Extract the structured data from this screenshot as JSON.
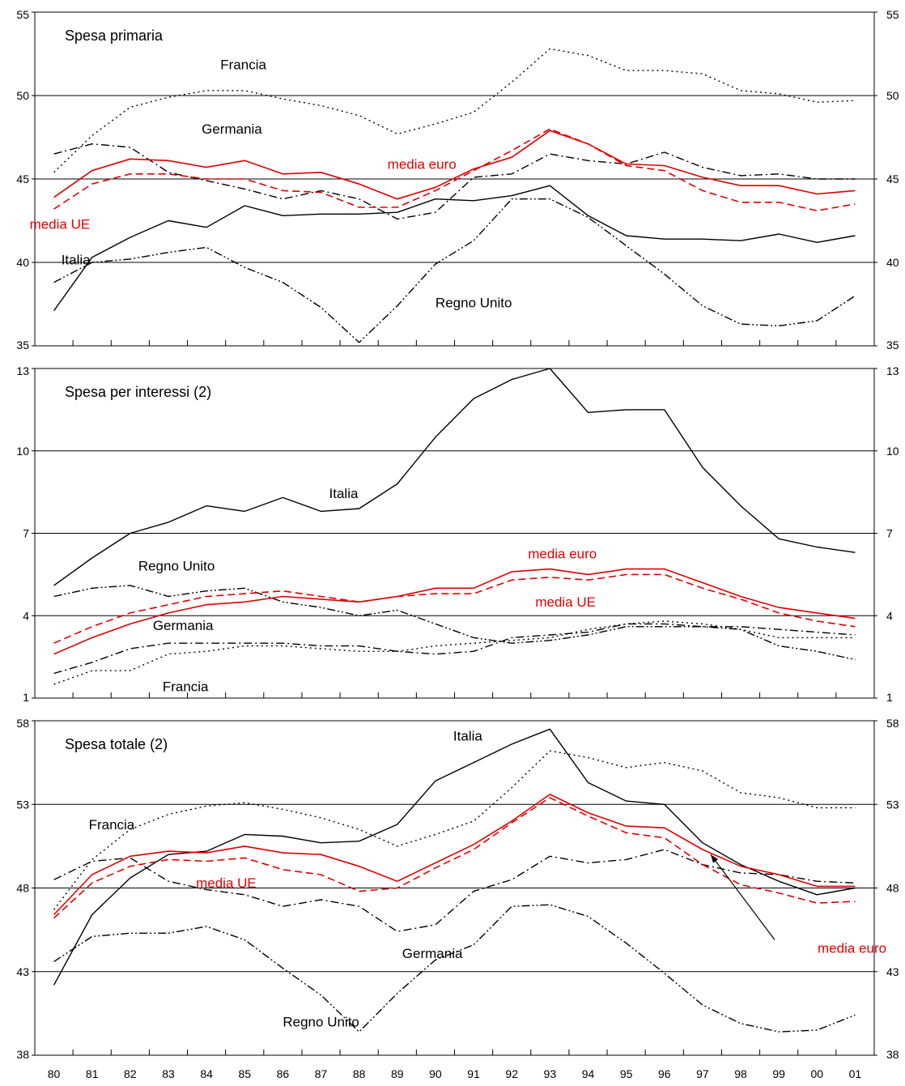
{
  "colors": {
    "series_black": "#000000",
    "series_red": "#e00000",
    "grid": "#000000"
  },
  "chart_data": [
    {
      "type": "line",
      "title": "Spesa primaria",
      "x": [
        "80",
        "81",
        "82",
        "83",
        "84",
        "85",
        "86",
        "87",
        "88",
        "89",
        "90",
        "91",
        "92",
        "93",
        "94",
        "95",
        "96",
        "97",
        "98",
        "99",
        "00",
        "01"
      ],
      "ylim": [
        35,
        55
      ],
      "yticks": [
        35,
        40,
        45,
        50,
        55
      ],
      "grid": [
        40,
        45,
        50
      ],
      "series": [
        {
          "name": "Francia",
          "style": "dotted",
          "color": "black",
          "values": [
            45.4,
            47.6,
            49.3,
            49.9,
            50.3,
            50.3,
            49.8,
            49.4,
            48.8,
            47.7,
            48.3,
            49.0,
            50.8,
            52.8,
            52.4,
            51.5,
            51.5,
            51.3,
            50.3,
            50.1,
            49.6,
            49.7
          ]
        },
        {
          "name": "Germania",
          "style": "dashdot",
          "color": "black",
          "values": [
            46.5,
            47.1,
            46.9,
            45.4,
            44.9,
            44.4,
            43.8,
            44.3,
            43.8,
            42.6,
            43.0,
            45.1,
            45.3,
            46.5,
            46.1,
            45.9,
            46.6,
            45.7,
            45.2,
            45.3,
            45.0,
            45.0
          ]
        },
        {
          "name": "Italia",
          "style": "solid",
          "color": "black",
          "values": [
            37.1,
            40.3,
            41.5,
            42.5,
            42.1,
            43.4,
            42.8,
            42.9,
            42.9,
            43.0,
            43.8,
            43.7,
            44.0,
            44.6,
            42.8,
            41.6,
            41.4,
            41.4,
            41.3,
            41.7,
            41.2,
            41.6
          ]
        },
        {
          "name": "Regno Unito",
          "style": "dashdotdot",
          "color": "black",
          "values": [
            38.8,
            40.0,
            40.2,
            40.6,
            40.9,
            39.7,
            38.8,
            37.3,
            35.2,
            37.4,
            39.9,
            41.3,
            43.8,
            43.8,
            42.7,
            41.0,
            39.3,
            37.4,
            36.3,
            36.2,
            36.5,
            38.0
          ]
        },
        {
          "name": "media euro",
          "style": "solid",
          "color": "red",
          "values": [
            43.9,
            45.5,
            46.2,
            46.1,
            45.7,
            46.1,
            45.3,
            45.4,
            44.7,
            43.8,
            44.5,
            45.6,
            46.3,
            47.9,
            47.1,
            45.9,
            45.8,
            45.1,
            44.6,
            44.6,
            44.1,
            44.3
          ]
        },
        {
          "name": "media UE",
          "style": "dashed",
          "color": "red",
          "values": [
            43.2,
            44.7,
            45.3,
            45.3,
            45.0,
            45.0,
            44.3,
            44.2,
            43.3,
            43.3,
            44.3,
            45.5,
            46.7,
            48.0,
            47.1,
            45.8,
            45.5,
            44.3,
            43.6,
            43.6,
            43.1,
            43.5
          ]
        }
      ],
      "labels": {
        "Francia": "Francia",
        "Germania": "Germania",
        "Italia": "Italia",
        "Regno Unito": "Regno Unito",
        "media euro": "media euro",
        "media UE": "media UE"
      }
    },
    {
      "type": "line",
      "title": "Spesa per interessi (2)",
      "x": [
        "80",
        "81",
        "82",
        "83",
        "84",
        "85",
        "86",
        "87",
        "88",
        "89",
        "90",
        "91",
        "92",
        "93",
        "94",
        "95",
        "96",
        "97",
        "98",
        "99",
        "00",
        "01"
      ],
      "ylim": [
        1,
        13
      ],
      "yticks": [
        1,
        4,
        7,
        10,
        13
      ],
      "grid": [
        4,
        7,
        10
      ],
      "series": [
        {
          "name": "Italia",
          "style": "solid",
          "color": "black",
          "values": [
            5.1,
            6.1,
            7.0,
            7.4,
            8.0,
            7.8,
            8.3,
            7.8,
            7.9,
            8.8,
            10.5,
            11.9,
            12.6,
            13.0,
            11.4,
            11.5,
            11.5,
            9.4,
            8.0,
            6.8,
            6.5,
            6.3
          ]
        },
        {
          "name": "Regno Unito",
          "style": "dashdotdot",
          "color": "black",
          "values": [
            4.7,
            5.0,
            5.1,
            4.7,
            4.9,
            5.0,
            4.5,
            4.3,
            4.0,
            4.2,
            3.7,
            3.2,
            3.0,
            3.1,
            3.3,
            3.6,
            3.6,
            3.6,
            3.5,
            2.9,
            2.7,
            2.4
          ]
        },
        {
          "name": "Germania",
          "style": "dashdot",
          "color": "black",
          "values": [
            1.9,
            2.3,
            2.8,
            3.0,
            3.0,
            3.0,
            3.0,
            2.9,
            2.9,
            2.7,
            2.6,
            2.7,
            3.2,
            3.3,
            3.4,
            3.7,
            3.7,
            3.6,
            3.6,
            3.5,
            3.4,
            3.3
          ]
        },
        {
          "name": "Francia",
          "style": "dotted",
          "color": "black",
          "values": [
            1.5,
            2.0,
            2.0,
            2.6,
            2.7,
            2.9,
            2.9,
            2.8,
            2.7,
            2.7,
            2.9,
            3.0,
            3.1,
            3.2,
            3.5,
            3.7,
            3.8,
            3.7,
            3.5,
            3.2,
            3.2,
            3.2
          ]
        },
        {
          "name": "media euro",
          "style": "solid",
          "color": "red",
          "values": [
            2.6,
            3.2,
            3.7,
            4.1,
            4.4,
            4.5,
            4.7,
            4.6,
            4.5,
            4.7,
            5.0,
            5.0,
            5.6,
            5.7,
            5.5,
            5.7,
            5.7,
            5.2,
            4.7,
            4.3,
            4.1,
            3.9
          ]
        },
        {
          "name": "media UE",
          "style": "dashed",
          "color": "red",
          "values": [
            3.0,
            3.6,
            4.1,
            4.4,
            4.7,
            4.8,
            4.9,
            4.7,
            4.5,
            4.7,
            4.8,
            4.8,
            5.3,
            5.4,
            5.3,
            5.5,
            5.5,
            5.0,
            4.6,
            4.1,
            3.8,
            3.6
          ]
        }
      ],
      "labels": {
        "Italia": "Italia",
        "Regno Unito": "Regno Unito",
        "Germania": "Germania",
        "Francia": "Francia",
        "media euro": "media euro",
        "media UE": "media UE"
      }
    },
    {
      "type": "line",
      "title": "Spesa totale (2)",
      "x": [
        "80",
        "81",
        "82",
        "83",
        "84",
        "85",
        "86",
        "87",
        "88",
        "89",
        "90",
        "91",
        "92",
        "93",
        "94",
        "95",
        "96",
        "97",
        "98",
        "99",
        "00",
        "01"
      ],
      "ylim": [
        38,
        58
      ],
      "yticks": [
        38,
        43,
        48,
        53,
        58
      ],
      "grid": [
        43,
        48,
        53
      ],
      "series": [
        {
          "name": "Italia",
          "style": "solid",
          "color": "black",
          "values": [
            42.2,
            46.4,
            48.6,
            50.0,
            50.2,
            51.2,
            51.1,
            50.7,
            50.8,
            51.8,
            54.4,
            55.5,
            56.6,
            57.5,
            54.3,
            53.2,
            53.0,
            50.7,
            49.4,
            48.4,
            47.6,
            48.0
          ]
        },
        {
          "name": "Francia",
          "style": "dotted",
          "color": "black",
          "values": [
            46.7,
            49.7,
            51.5,
            52.4,
            52.9,
            53.1,
            52.7,
            52.2,
            51.5,
            50.5,
            51.2,
            52.0,
            54.0,
            56.2,
            55.8,
            55.2,
            55.5,
            55.0,
            53.7,
            53.4,
            52.8,
            52.8
          ]
        },
        {
          "name": "Germania",
          "style": "dashdot",
          "color": "black",
          "values": [
            48.5,
            49.6,
            49.8,
            48.4,
            47.9,
            47.6,
            46.9,
            47.3,
            46.9,
            45.4,
            45.8,
            47.8,
            48.5,
            49.9,
            49.5,
            49.7,
            50.3,
            49.4,
            48.9,
            48.8,
            48.4,
            48.3
          ]
        },
        {
          "name": "Regno Unito",
          "style": "dashdotdot",
          "color": "black",
          "values": [
            43.6,
            45.1,
            45.3,
            45.3,
            45.7,
            44.9,
            43.2,
            41.6,
            39.4,
            41.7,
            43.7,
            44.6,
            46.9,
            47.0,
            46.3,
            44.7,
            42.9,
            41.0,
            39.9,
            39.4,
            39.5,
            40.4
          ]
        },
        {
          "name": "media euro",
          "style": "solid",
          "color": "red",
          "values": [
            46.4,
            48.8,
            49.9,
            50.2,
            50.1,
            50.5,
            50.1,
            50.0,
            49.3,
            48.4,
            49.5,
            50.6,
            52.0,
            53.6,
            52.5,
            51.7,
            51.6,
            50.3,
            49.3,
            48.8,
            48.1,
            48.1
          ]
        },
        {
          "name": "media UE",
          "style": "dashed",
          "color": "red",
          "values": [
            46.2,
            48.3,
            49.3,
            49.7,
            49.6,
            49.8,
            49.1,
            48.8,
            47.8,
            48.0,
            49.2,
            50.3,
            51.9,
            53.4,
            52.3,
            51.3,
            51.0,
            49.4,
            48.2,
            47.7,
            47.1,
            47.2
          ]
        }
      ],
      "labels": {
        "Italia": "Italia",
        "Francia": "Francia",
        "Germania": "Germania",
        "Regno Unito": "Regno Unito",
        "media UE": "media UE",
        "media euro": "media euro"
      }
    }
  ]
}
